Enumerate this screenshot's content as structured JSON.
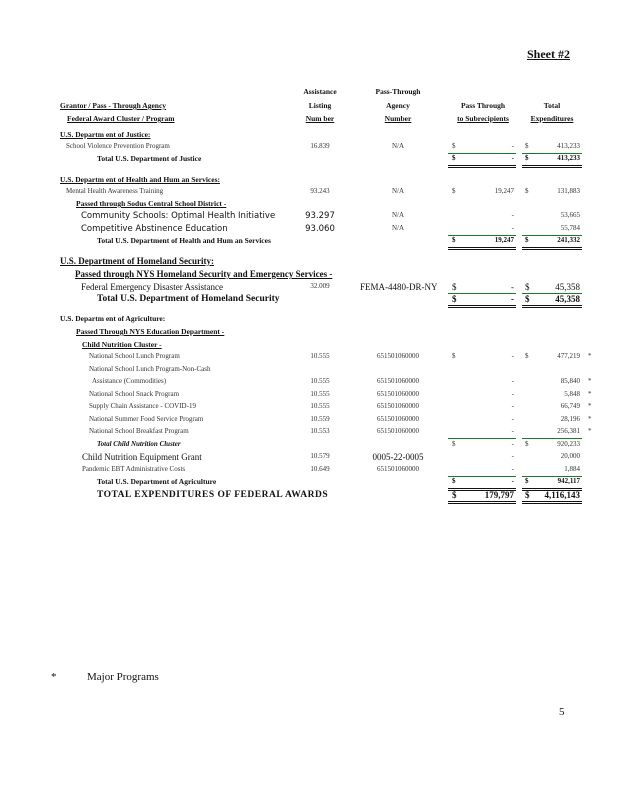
{
  "sheet_label": "Sheet #2",
  "headers": {
    "grantor": "Grantor / Pass - Through Agency",
    "program": "Federal Award Cluster / Program",
    "aln": [
      "Assistance",
      "Listing",
      "Num ber"
    ],
    "ptan": [
      "Pass-Through",
      "Agency",
      "Number"
    ],
    "pass": [
      "Pass Through",
      "to Subrecipients"
    ],
    "total": [
      "Total",
      "Expenditures"
    ]
  },
  "rows": [
    {
      "name": "U.S. Departm ent of Justice:",
      "style": "section"
    },
    {
      "name": "School Violence Prevention Program",
      "aln": "16.839",
      "ptan": "N/A",
      "pass_sym": "$",
      "pass": "-",
      "total_sym": "$",
      "total": "413,233"
    },
    {
      "name": "Total U.S. Department of Justice",
      "style": "total",
      "pass_sym": "$",
      "pass": "-",
      "total_sym": "$",
      "total": "413,233"
    },
    {
      "name": "U.S. Departm ent of Health and Hum  an Services:",
      "style": "section"
    },
    {
      "name": "Mental Health Awareness Training",
      "aln": "93.243",
      "ptan": "N/A",
      "pass_sym": "$",
      "pass": "19,247",
      "total_sym": "$",
      "total": "131,883"
    },
    {
      "name": "Passed through Sodus Central School District -",
      "style": "sub"
    },
    {
      "name": "Community Schools: Optimal Health Initiative",
      "aln": "93.297",
      "ptan": "N/A",
      "pass": "-",
      "total": "53,665",
      "style": "big"
    },
    {
      "name": "Competitive Abstinence Education",
      "aln": "93.060",
      "ptan": "N/A",
      "pass": "-",
      "total": "55,784",
      "style": "big"
    },
    {
      "name": "Total U.S. Department of Health and Hum    an Services",
      "style": "total",
      "pass_sym": "$",
      "pass": "19,247",
      "total_sym": "$",
      "total": "241,332"
    },
    {
      "name": "U.S. Department of Homeland Security:",
      "style": "section-big"
    },
    {
      "name": "Passed through NYS Homeland Security and Emergency Services -",
      "style": "sub-big"
    },
    {
      "name": "Federal Emergency Disaster Assistance",
      "aln": "32.009",
      "ptan": "FEMA-4480-DR-NY",
      "pass_sym": "$",
      "pass": "-",
      "total_sym": "$",
      "total": "45,358",
      "style": "big2"
    },
    {
      "name": "Total U.S. Department of Homeland Security",
      "style": "total-big",
      "pass_sym": "$",
      "pass": "-",
      "total_sym": "$",
      "total": "45,358"
    },
    {
      "name": "U.S. Departm ent of Agriculture:",
      "style": "section-plain"
    },
    {
      "name": "Passed Through NYS Education Department -",
      "style": "sub"
    },
    {
      "name": "Child Nutrition Cluster  -",
      "style": "sub2"
    },
    {
      "name": "National School Lunch Program",
      "aln": "10.555",
      "ptan": "651501060000",
      "pass_sym": "$",
      "pass": "-",
      "total_sym": "$",
      "total": "477,219",
      "star": "*",
      "style": "item"
    },
    {
      "name": "National School Lunch Program-Non-Cash",
      "style": "item"
    },
    {
      "name": "Assistance (Commodities)",
      "aln": "10.555",
      "ptan": "651501060000",
      "pass": "-",
      "total": "85,840",
      "star": "*",
      "style": "item2"
    },
    {
      "name": "National School Snack Program",
      "aln": "10.555",
      "ptan": "651501060000",
      "pass": "-",
      "total": "5,848",
      "star": "*",
      "style": "item"
    },
    {
      "name": "Supply Chain Assistance - COVID-19",
      "aln": "10.555",
      "ptan": "651501060000",
      "pass": "-",
      "total": "66,749",
      "star": "*",
      "style": "item"
    },
    {
      "name": "National Summer Food Service Program",
      "aln": "10.559",
      "ptan": "651501060000",
      "pass": "-",
      "total": "28,196",
      "star": "*",
      "style": "item"
    },
    {
      "name": "National School Breakfast Program",
      "aln": "10.553",
      "ptan": "651501060000",
      "pass": "-",
      "total": "256,381",
      "star": "*",
      "style": "item"
    },
    {
      "name": "Total Child Nutrition Cluster",
      "style": "subtotal",
      "pass_sym": "$",
      "pass": "-",
      "total_sym": "$",
      "total": "920,233"
    },
    {
      "name": "Child Nutrition Equipment Grant",
      "aln": "10.579",
      "ptan": "0005-22-0005",
      "pass": "-",
      "total": "20,000",
      "style": "equip"
    },
    {
      "name": "Pandemic EBT Administrative Costs",
      "aln": "10.649",
      "ptan": "651501060000",
      "pass": "-",
      "total": "1,884",
      "style": "pandemic"
    },
    {
      "name": "Total U.S. Department of Agriculture",
      "style": "total",
      "pass_sym": "$",
      "pass": "-",
      "total_sym": "$",
      "total": "942,117"
    },
    {
      "name": "TOTAL  EXPENDITURES  OF  FEDERAL  AWARDS",
      "style": "grand",
      "pass_sym": "$",
      "pass": "179,797",
      "total_sym": "$",
      "total": "4,116,143"
    }
  ],
  "footnote": {
    "symbol": "*",
    "text": "Major Programs"
  },
  "page_number": "5",
  "colors": {
    "rule_green": "#1a7a2a"
  }
}
